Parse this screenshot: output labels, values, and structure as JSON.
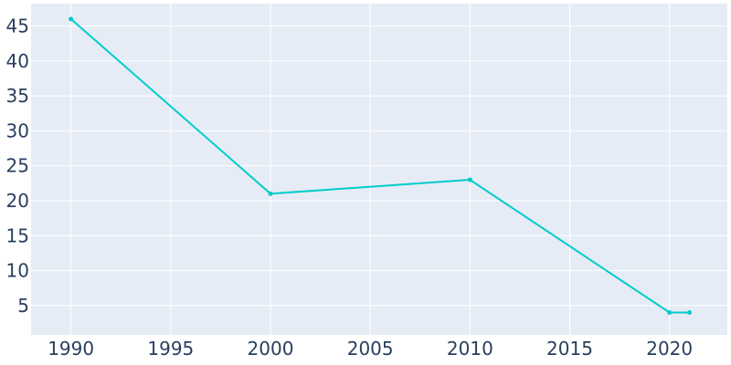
{
  "chart_data": {
    "type": "line",
    "title": "",
    "xlabel": "",
    "ylabel": "",
    "x": [
      1990,
      2000,
      2010,
      2020,
      2021
    ],
    "series": [
      {
        "values": [
          46,
          21,
          23,
          4,
          4
        ]
      }
    ],
    "xlim": [
      1988,
      2022.9
    ],
    "ylim": [
      0.8,
      48.2
    ],
    "xticks": [
      1990,
      1995,
      2000,
      2005,
      2010,
      2015,
      2020
    ],
    "yticks": [
      5,
      10,
      15,
      20,
      25,
      30,
      35,
      40,
      45
    ],
    "xtick_labels": [
      "1990",
      "1995",
      "2000",
      "2005",
      "2010",
      "2015",
      "2020"
    ],
    "ytick_labels": [
      "5",
      "10",
      "15",
      "20",
      "25",
      "30",
      "35",
      "40",
      "45"
    ],
    "grid": true,
    "legend": "none",
    "colors": {
      "plot_background": "#e5ecf6",
      "grid": "#ffffff",
      "series": "#00cccc",
      "tick_text": "#2a3f5f"
    }
  }
}
